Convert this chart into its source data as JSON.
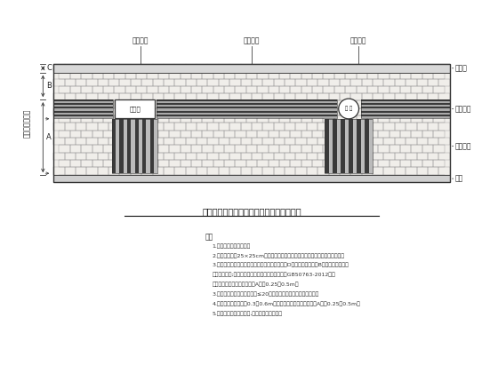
{
  "title": "人行道上遇障碍物提示盲道设置平面示意图",
  "bg_color": "#ffffff",
  "tile_color": "#f5f5f0",
  "tile_line_color": "#aaaaaa",
  "blind_dark": "#444444",
  "blind_light": "#bbbbbb",
  "warn_dark": "#555555",
  "warn_light": "#cccccc",
  "right_labels": [
    "绿化带",
    "行进盲道",
    "警示盲道",
    "铺石"
  ],
  "top_labels": [
    "提示盲道",
    "行进盲道",
    "提示盲道"
  ],
  "left_label": "人行道宽度方向",
  "obstacle_label": "障碍物",
  "circle_label": "井 盖",
  "notes_title": "注：",
  "notes": [
    "1.本图尺寸均以毫米计。",
    "2.本图道路网格25×25cm填充为示例，道板材料或规格根据路案系列工程选定。",
    "3.行进盲道距离人行道内侧路缘石或侧铺石的间距D，行进盲道的宽度B，行进盲道距离外",
    "侧行不同间距;具体要求参照（无障碍设计规范）（GB50763-2012）；",
    "行进盲道或警示盲道铺的间距A宽为0.25～0.5m。",
    "3.各段连续警示盲道之间间距≤20米时，盲道宜连续式铺下图形状。",
    "4.提示盲道的宽度发现0.3～0.6m，提示盲道距离障碍物的间距A宽为0.25～0.5m。",
    "5.井盖盲路不官道的长路,盖不小于井盖大小。"
  ]
}
